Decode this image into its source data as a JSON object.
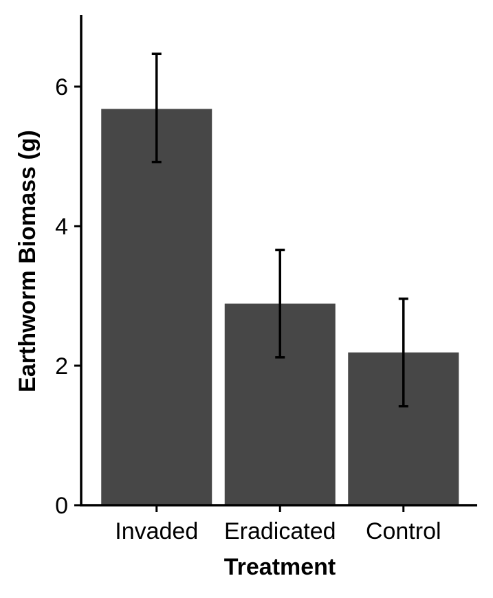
{
  "chart_data": {
    "type": "bar",
    "categories": [
      "Invaded",
      "Eradicated",
      "Control"
    ],
    "values": [
      5.68,
      2.89,
      2.19
    ],
    "error_low": [
      4.92,
      2.12,
      1.42
    ],
    "error_high": [
      6.47,
      3.66,
      2.96
    ],
    "xlabel": "Treatment",
    "ylabel": "Earthworm Biomass (g)",
    "ylim": [
      0,
      7
    ],
    "yticks": [
      0,
      2,
      4,
      6
    ],
    "ytick_labels": [
      "0",
      "2",
      "4",
      "6"
    ],
    "grid": false,
    "legend": "none",
    "colors": {
      "bar": "#474747",
      "axis": "#000000",
      "error_bar": "#000000"
    }
  }
}
